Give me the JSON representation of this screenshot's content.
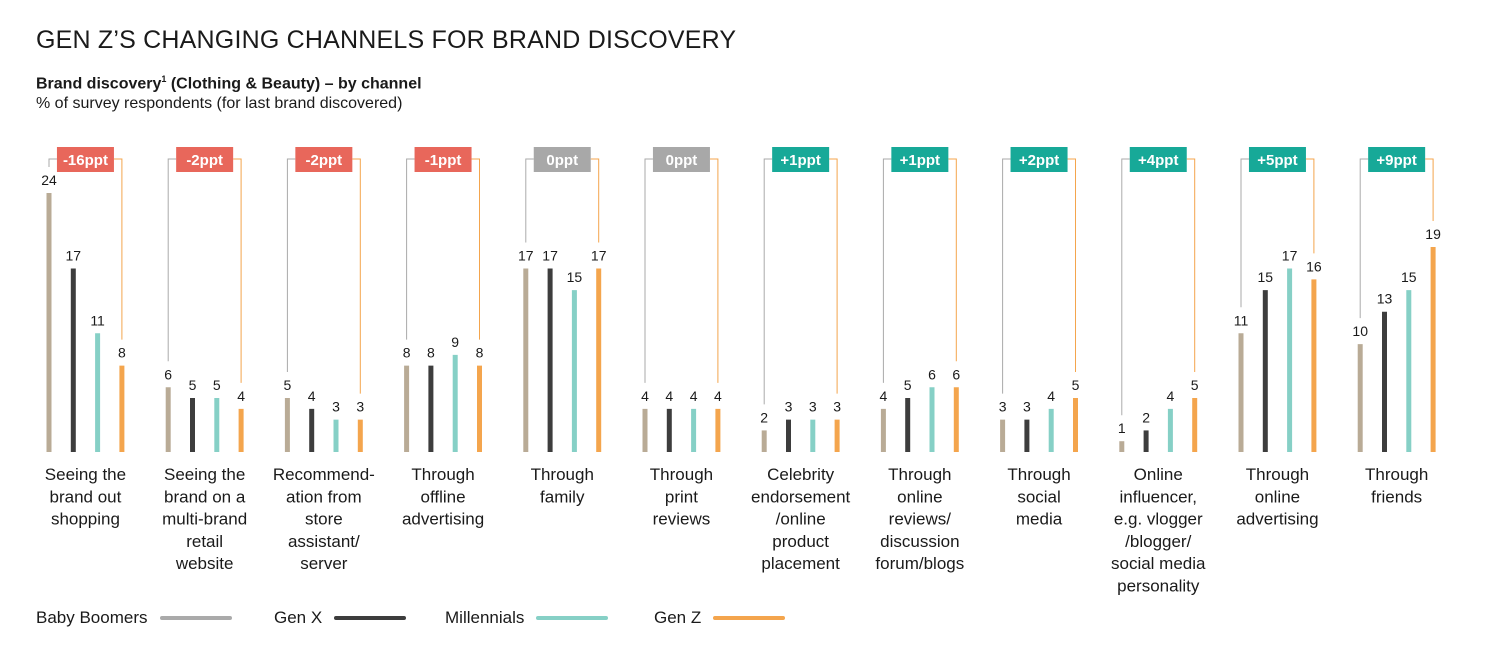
{
  "title": "GEN Z’S CHANGING CHANNELS FOR BRAND DISCOVERY",
  "subtitle_main": "Brand discovery",
  "subtitle_sup": "1",
  "subtitle_rest": " (Clothing & Beauty) – by channel",
  "subtitle2": "% of survey respondents (for last brand discovered)",
  "colors": {
    "baby_boomers": "#b9ab96",
    "gen_x": "#3d3d3d",
    "millennials": "#86d0c6",
    "gen_z": "#f4a54d",
    "badge_negative": "#e8675b",
    "badge_zero": "#a8a8a8",
    "badge_positive": "#17a998",
    "legend_baby_boomers": "#aaaaaa"
  },
  "legend": [
    {
      "label": "Baby Boomers",
      "color": "#aaaaaa"
    },
    {
      "label": "Gen X",
      "color": "#3d3d3d"
    },
    {
      "label": "Millennials",
      "color": "#86d0c6"
    },
    {
      "label": "Gen Z",
      "color": "#f4a54d"
    }
  ],
  "chart_data": {
    "type": "bar",
    "title": "GEN Z’S CHANGING CHANNELS FOR BRAND DISCOVERY",
    "ylabel": "% of survey respondents (for last brand discovered)",
    "ylim": [
      0,
      24
    ],
    "grid": false,
    "legend_position": "bottom-left",
    "categories": [
      [
        "Seeing the",
        "brand out",
        "shopping"
      ],
      [
        "Seeing the",
        "brand on a",
        "multi-brand",
        "retail",
        "website"
      ],
      [
        "Recommend-",
        "ation from",
        "store",
        "assistant/",
        "server"
      ],
      [
        "Through",
        "offline",
        "advertising"
      ],
      [
        "Through",
        "family"
      ],
      [
        "Through",
        "print",
        "reviews"
      ],
      [
        "Celebrity",
        "endorsement",
        "/online",
        "product",
        "placement"
      ],
      [
        "Through",
        "online",
        "reviews/",
        "discussion",
        "forum/blogs"
      ],
      [
        "Through",
        "social",
        "media"
      ],
      [
        "Online",
        "influencer,",
        "e.g. vlogger",
        "/blogger/",
        "social media",
        "personality"
      ],
      [
        "Through",
        "online",
        "advertising"
      ],
      [
        "Through",
        "friends"
      ]
    ],
    "changes": [
      "-16ppt",
      "-2ppt",
      "-2ppt",
      "-1ppt",
      "0ppt",
      "0ppt",
      "+1ppt",
      "+1ppt",
      "+2ppt",
      "+4ppt",
      "+5ppt",
      "+9ppt"
    ],
    "change_types": [
      "neg",
      "neg",
      "neg",
      "neg",
      "zero",
      "zero",
      "pos",
      "pos",
      "pos",
      "pos",
      "pos",
      "pos"
    ],
    "series": [
      {
        "name": "Baby Boomers",
        "values": [
          24,
          6,
          5,
          8,
          17,
          4,
          2,
          4,
          3,
          1,
          11,
          10
        ]
      },
      {
        "name": "Gen X",
        "values": [
          17,
          5,
          4,
          8,
          17,
          4,
          3,
          5,
          3,
          2,
          15,
          13
        ]
      },
      {
        "name": "Millennials",
        "values": [
          11,
          5,
          3,
          9,
          15,
          4,
          3,
          6,
          4,
          4,
          17,
          15
        ]
      },
      {
        "name": "Gen Z",
        "values": [
          8,
          4,
          3,
          8,
          17,
          4,
          3,
          6,
          5,
          5,
          16,
          19
        ]
      }
    ]
  }
}
